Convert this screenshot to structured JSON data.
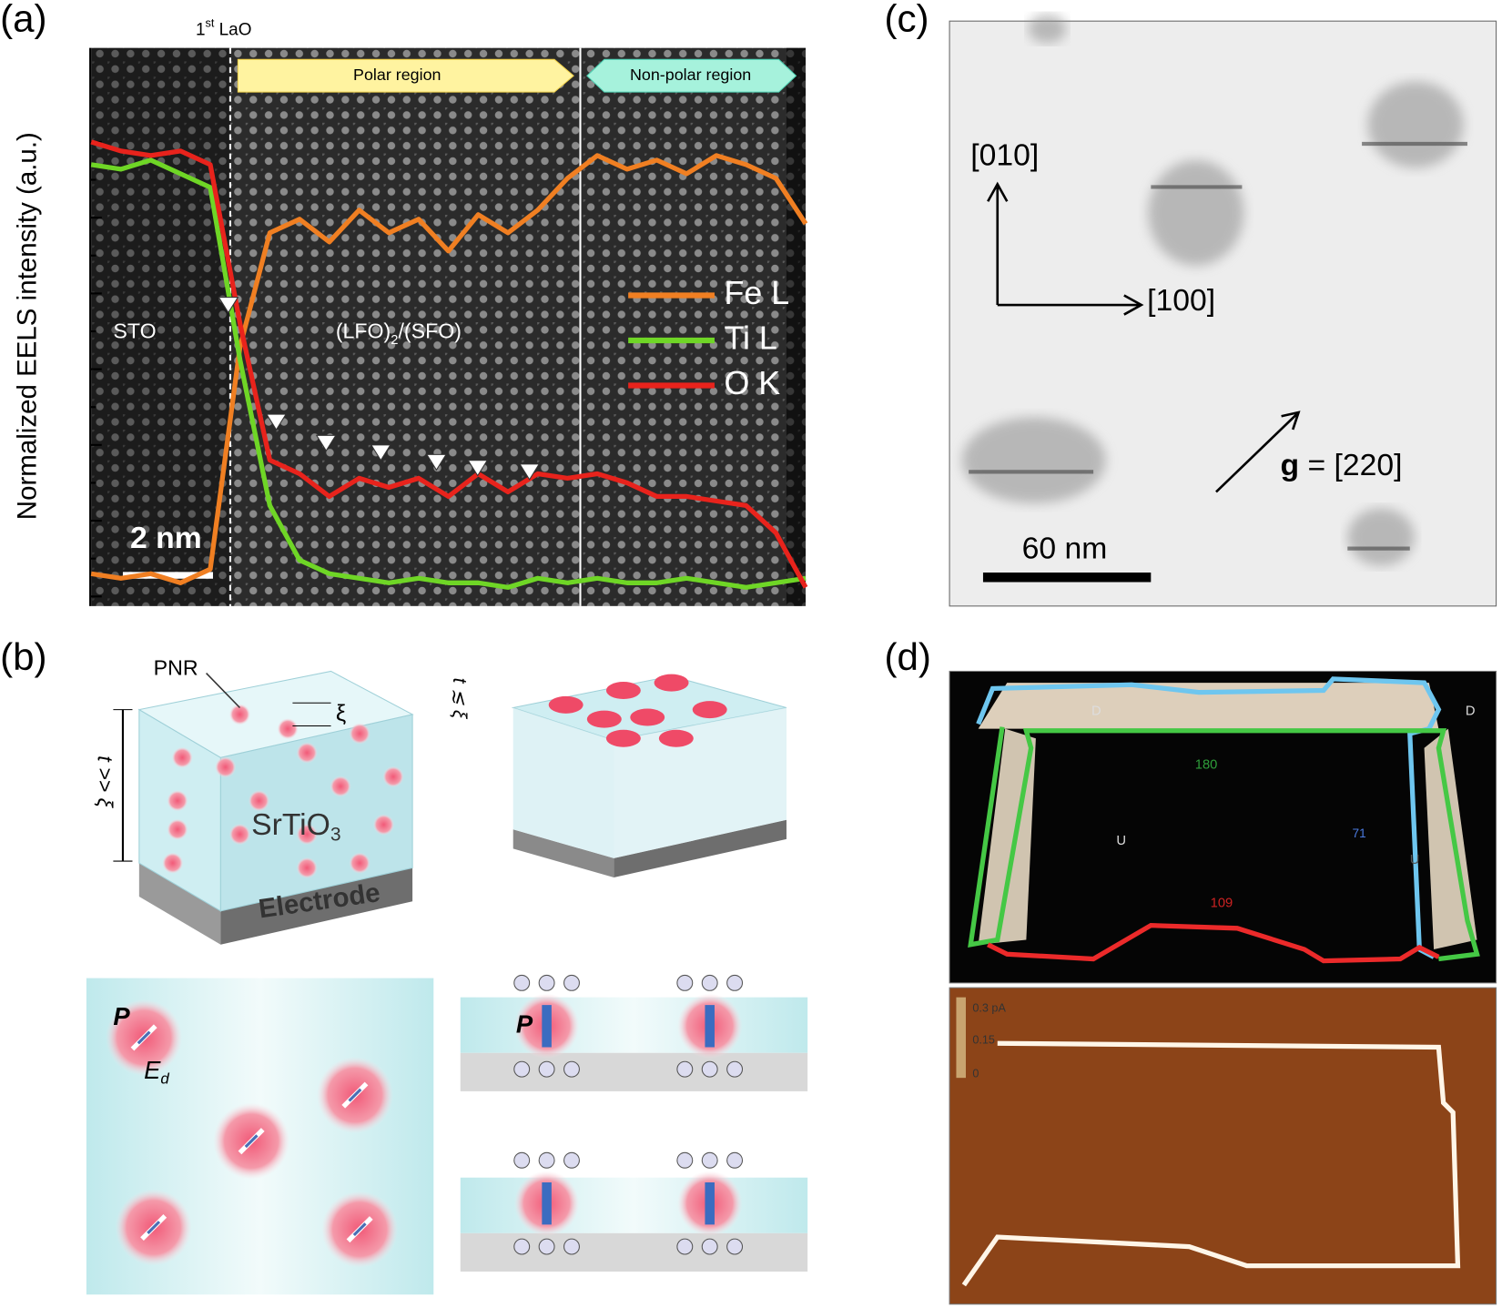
{
  "panel_labels": [
    "(a)",
    "(b)",
    "(c)",
    "(d)"
  ],
  "chart_data": {
    "type": "line",
    "y_label": "Normalized EELS intensity (a.u.)",
    "first_layer": [
      "1",
      "st",
      " LaO"
    ],
    "regions": [
      "Polar region",
      "Non-polar region"
    ],
    "substrate_label": "STO",
    "film_label": [
      "(LFO)",
      "2",
      "/(SFO)"
    ],
    "scale_bar": "2 nm",
    "series": [
      {
        "name": "Fe L",
        "color": "#f07f22",
        "values": [
          0.05,
          0.04,
          0.05,
          0.03,
          0.06,
          0.55,
          0.8,
          0.83,
          0.78,
          0.85,
          0.8,
          0.83,
          0.76,
          0.84,
          0.8,
          0.85,
          0.92,
          0.97,
          0.94,
          0.96,
          0.93,
          0.97,
          0.95,
          0.92,
          0.82
        ]
      },
      {
        "name": "Ti L",
        "color": "#6fd626",
        "values": [
          0.95,
          0.94,
          0.96,
          0.93,
          0.9,
          0.52,
          0.2,
          0.08,
          0.05,
          0.04,
          0.03,
          0.04,
          0.03,
          0.03,
          0.02,
          0.04,
          0.03,
          0.04,
          0.03,
          0.03,
          0.04,
          0.03,
          0.02,
          0.03,
          0.04
        ]
      },
      {
        "name": "O K",
        "color": "#e8231c",
        "values": [
          1.0,
          0.98,
          0.97,
          0.98,
          0.95,
          0.6,
          0.3,
          0.27,
          0.22,
          0.26,
          0.24,
          0.26,
          0.22,
          0.27,
          0.23,
          0.27,
          0.26,
          0.27,
          0.25,
          0.22,
          0.22,
          0.21,
          0.2,
          0.14,
          0.02
        ]
      }
    ]
  },
  "panel_b": {
    "pnr": "PNR",
    "xi": "ξ",
    "thick": "t >> ξ",
    "thin": "t ≲ ξ",
    "material": [
      "SrTiO",
      "3"
    ],
    "electrode": "Electrode",
    "polarization": "P",
    "field": [
      "E",
      "d"
    ],
    "polarization_film": "P"
  },
  "panel_c": {
    "axis_y": "[010]",
    "axis_x": "[100]",
    "g_symbol": "g",
    "g_value": " = [220]",
    "scale_bar": "60 nm"
  },
  "panel_d": {
    "wall_labels": [
      "D",
      "D",
      "U",
      "U"
    ],
    "angles": [
      "180",
      "71",
      "109"
    ],
    "colorbar": [
      "0.3 pA",
      "0.15",
      "0"
    ]
  }
}
